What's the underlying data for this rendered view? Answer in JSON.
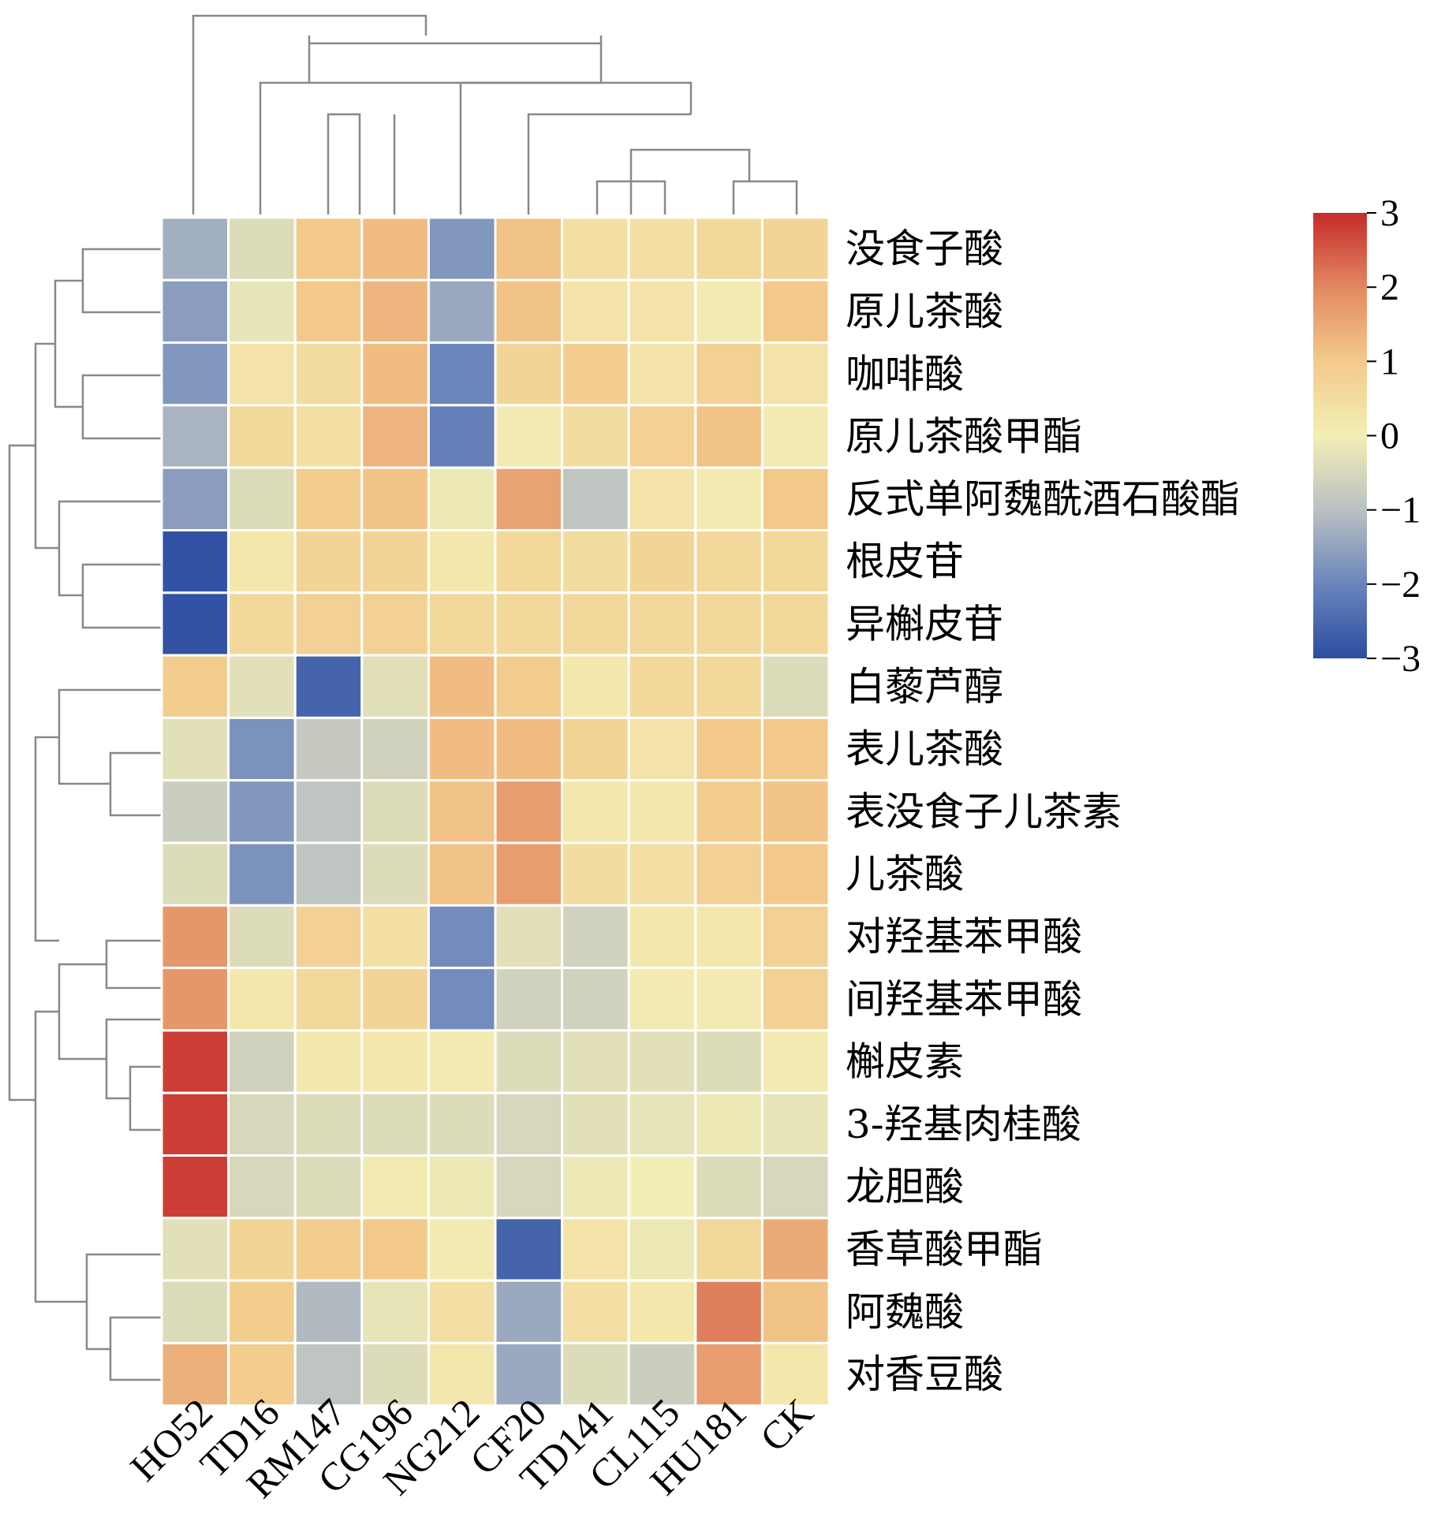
{
  "chart_data": {
    "type": "heatmap",
    "title": "",
    "xlabel": "",
    "ylabel": "",
    "columns": [
      "HO52",
      "TD16",
      "RM147",
      "CG196",
      "NG212",
      "CF20",
      "TD141",
      "CL115",
      "HU181",
      "CK"
    ],
    "rows": [
      "没食子酸",
      "原儿茶酸",
      "咖啡酸",
      "原儿茶酸甲酯",
      "反式单阿魏酰酒石酸酯",
      "根皮苷",
      "异槲皮苷",
      "白藜芦醇",
      "表儿茶酸",
      "表没食子儿茶素",
      "儿茶酸",
      "对羟基苯甲酸",
      "间羟基苯甲酸",
      "槲皮素",
      "3-羟基肉桂酸",
      "龙胆酸",
      "香草酸甲酯",
      "阿魏酸",
      "对香豆酸"
    ],
    "values": [
      [
        -1.3,
        -0.4,
        1.0,
        1.2,
        -1.7,
        1.1,
        0.4,
        0.4,
        0.6,
        0.7
      ],
      [
        -1.6,
        -0.2,
        1.0,
        1.3,
        -1.4,
        1.1,
        0.3,
        0.3,
        0.1,
        1.0
      ],
      [
        -1.7,
        0.3,
        0.5,
        1.2,
        -2.0,
        0.7,
        0.9,
        0.3,
        0.8,
        0.3
      ],
      [
        -1.2,
        0.6,
        0.4,
        1.3,
        -2.1,
        0.1,
        0.5,
        0.8,
        1.1,
        0.1
      ],
      [
        -1.6,
        -0.4,
        0.9,
        1.1,
        -0.1,
        1.6,
        -0.9,
        0.3,
        0.1,
        1.0
      ],
      [
        -2.9,
        0.2,
        0.7,
        0.7,
        0.2,
        0.6,
        0.5,
        0.7,
        0.6,
        0.6
      ],
      [
        -2.9,
        0.6,
        0.8,
        0.8,
        0.6,
        0.6,
        0.6,
        0.6,
        0.6,
        0.6
      ],
      [
        0.9,
        -0.3,
        -2.6,
        -0.3,
        1.2,
        0.9,
        0.2,
        0.6,
        0.6,
        -0.4
      ],
      [
        -0.3,
        -1.8,
        -0.8,
        -0.6,
        1.2,
        1.2,
        0.7,
        0.3,
        1.0,
        1.0
      ],
      [
        -0.7,
        -1.7,
        -0.9,
        -0.4,
        1.1,
        1.7,
        0.2,
        0.2,
        0.9,
        1.1
      ],
      [
        -0.4,
        -1.8,
        -0.9,
        -0.4,
        1.1,
        1.7,
        0.5,
        0.4,
        0.8,
        1.0
      ],
      [
        1.8,
        -0.4,
        0.8,
        0.4,
        -1.9,
        -0.3,
        -0.6,
        0.2,
        0.2,
        0.8
      ],
      [
        1.8,
        0.2,
        0.6,
        0.7,
        -1.9,
        -0.6,
        -0.6,
        0.1,
        0.1,
        0.8
      ],
      [
        2.8,
        -0.6,
        0.2,
        0.2,
        0.1,
        -0.4,
        -0.3,
        -0.3,
        -0.4,
        0.1
      ],
      [
        2.8,
        -0.5,
        -0.4,
        -0.4,
        -0.4,
        -0.5,
        -0.3,
        -0.2,
        -0.1,
        -0.2
      ],
      [
        2.8,
        -0.5,
        -0.4,
        0.1,
        -0.1,
        -0.5,
        -0.1,
        0.0,
        -0.4,
        -0.5
      ],
      [
        -0.3,
        0.7,
        0.9,
        1.0,
        0.1,
        -2.6,
        0.3,
        -0.1,
        0.6,
        1.5
      ],
      [
        -0.4,
        0.9,
        -1.1,
        -0.2,
        0.4,
        -1.4,
        0.4,
        0.2,
        2.1,
        1.1
      ],
      [
        1.4,
        0.9,
        -0.9,
        -0.4,
        0.2,
        -1.4,
        -0.4,
        -0.7,
        1.7,
        0.2
      ]
    ],
    "colorbar": {
      "ticks": [
        "3",
        "2",
        "1",
        "0",
        "−1",
        "−2",
        "−3"
      ],
      "min": -3,
      "max": 3,
      "colors": [
        "#3b56a5",
        "#f3eeb5",
        "#c93a2e"
      ]
    },
    "row_dendrogram": true,
    "column_dendrogram": true
  }
}
